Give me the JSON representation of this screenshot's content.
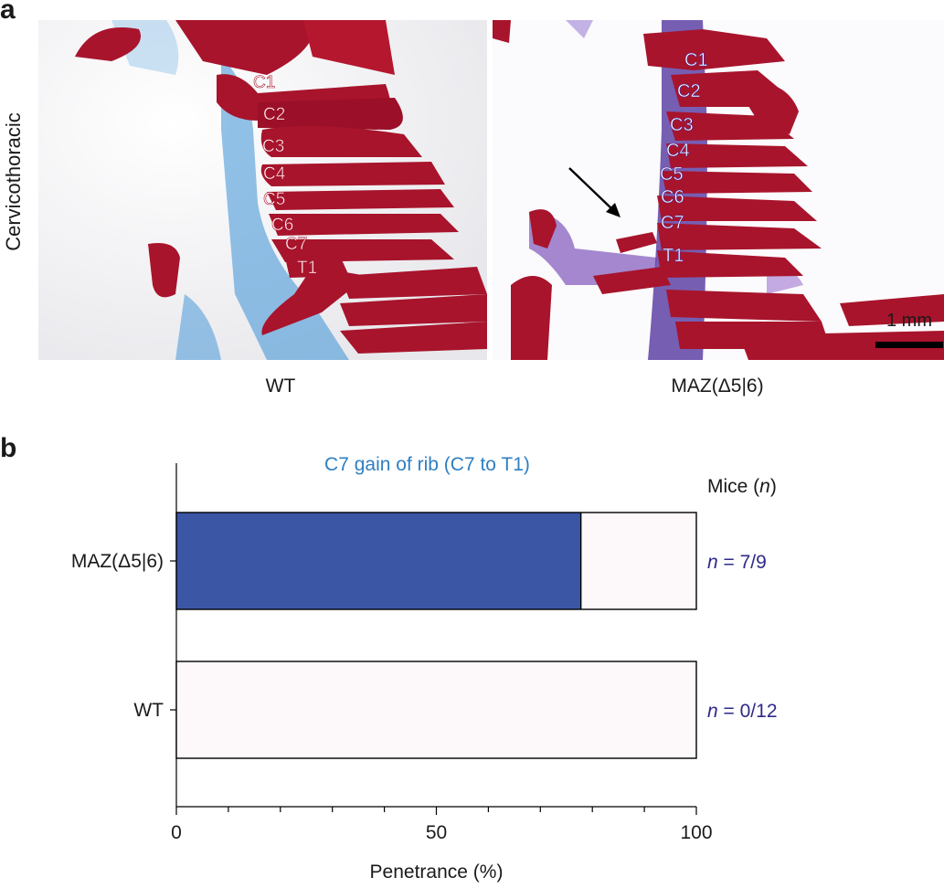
{
  "panel_a": {
    "letter": "a",
    "row_label": "Cervicothoracic",
    "left_caption": "WT",
    "right_caption": "MAZ(Δ5|6)",
    "scale_label": "1 mm",
    "wt_vertebrae": [
      "C1",
      "C2",
      "C3",
      "C4",
      "C5",
      "C6",
      "C7",
      "T1"
    ],
    "maz_vertebrae": [
      "C1",
      "C2",
      "C3",
      "C4",
      "C5",
      "C6",
      "C7",
      "T1"
    ],
    "colors": {
      "bone": "#a8142c",
      "cartilage_wt": "#3a8fd6",
      "cartilage_maz": "#4a2a9a",
      "background": "#f6f6f8"
    }
  },
  "panel_b": {
    "letter": "b"
  },
  "chart_data": {
    "type": "bar",
    "orientation": "horizontal",
    "stacked": true,
    "title": "C7 gain of rib (C7 to T1)",
    "xlabel": "Penetrance (%)",
    "ylabel": "",
    "xlim": [
      0,
      100
    ],
    "x_ticks": [
      0,
      50,
      100
    ],
    "categories": [
      "MAZ(Δ5|6)",
      "WT"
    ],
    "series": [
      {
        "values": [
          77.8,
          0
        ],
        "color": "#3c56a6"
      },
      {
        "values": [
          22.2,
          100
        ],
        "color": "#fdf8f9"
      }
    ],
    "right_header": "Mice (n)",
    "right_header_parts": {
      "text": "Mice (",
      "italic": "n",
      "close": ")"
    },
    "annotations": [
      {
        "italic": "n",
        "text": " = 7/9"
      },
      {
        "italic": "n",
        "text": " = 0/12"
      }
    ],
    "colors": {
      "title": "#2f7fc1",
      "annotation": "#2e2a88"
    }
  }
}
